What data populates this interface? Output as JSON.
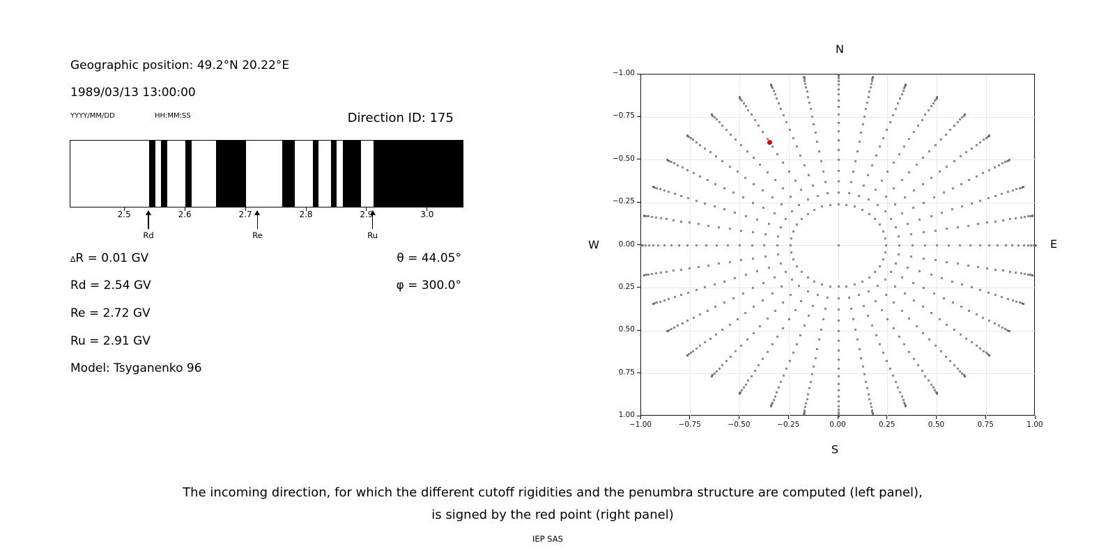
{
  "left_panel": {
    "geo": "Geographic position: 49.2°N 20.22°E",
    "datetime": "1989/03/13 13:00:00",
    "date_format": "YYYY/MM/DD",
    "time_format": "HH:MM:SS",
    "direction_id": "Direction ID: 175",
    "values": {
      "dr_prefix": "∆",
      "dr_rest": "R = 0.01 GV",
      "rd": "Rd = 2.54 GV",
      "re": "Re = 2.72 GV",
      "ru": "Ru = 2.91 GV",
      "model": "Model: Tsyganenko 96"
    },
    "angles": {
      "theta": "θ = 44.05°",
      "phi": "φ = 300.0°"
    }
  },
  "caption": {
    "line1": "The incoming direction, for which the different cutoff rigidities and the penumbra structure are computed (left panel),",
    "line2": "is signed by the red point (right panel)",
    "credit": "IEP SAS"
  },
  "chart_data": [
    {
      "type": "bar",
      "panel": "penumbra-structure",
      "xlim": [
        2.41,
        3.06
      ],
      "tick_values": [
        2.5,
        2.6,
        2.7,
        2.8,
        2.9,
        3.0
      ],
      "tick_labels": [
        "2.5",
        "2.6",
        "2.7",
        "2.8",
        "2.9",
        "3.0"
      ],
      "x_unit": "GV",
      "forbidden_color": "#000000",
      "allowed_color": "#ffffff",
      "forbidden_bands_gv": [
        [
          2.54,
          2.55
        ],
        [
          2.56,
          2.57
        ],
        [
          2.6,
          2.61
        ],
        [
          2.65,
          2.7
        ],
        [
          2.76,
          2.78
        ],
        [
          2.81,
          2.82
        ],
        [
          2.84,
          2.85
        ],
        [
          2.86,
          2.89
        ],
        [
          2.91,
          3.06
        ]
      ],
      "markers": [
        {
          "label": "Rd",
          "value_gv": 2.54
        },
        {
          "label": "Re",
          "value_gv": 2.72
        },
        {
          "label": "Ru",
          "value_gv": 2.91
        }
      ]
    },
    {
      "type": "scatter",
      "panel": "incoming-direction-map",
      "xlim": [
        -1,
        1
      ],
      "ylim": [
        -1,
        1
      ],
      "tick_values": [
        -1,
        -0.75,
        -0.5,
        -0.25,
        0,
        0.25,
        0.5,
        0.75,
        1
      ],
      "x_tick_labels": [
        "−1.00",
        "−0.75",
        "−0.50",
        "−0.25",
        "0.00",
        "0.25",
        "0.50",
        "0.75",
        "1.00"
      ],
      "y_tick_labels": [
        "1.00",
        "0.75",
        "0.50",
        "0.25",
        "0.00",
        "−0.25",
        "−0.50",
        "−0.75",
        "−1.00"
      ],
      "grid_tick_values": [
        -0.75,
        -0.5,
        -0.25,
        0,
        0.25,
        0.5,
        0.75
      ],
      "grid_on": true,
      "grid_color": "#e7e7e7",
      "compass": {
        "top": "N",
        "bottom": "S",
        "left": "W",
        "right": "E"
      },
      "dot_color": "#5f5f5f",
      "azimuth_step_deg": 10,
      "zenith_angles_deg": [
        14,
        18,
        22,
        26,
        30,
        34,
        38,
        42,
        46,
        50,
        54,
        58,
        62,
        66,
        70,
        74,
        78,
        82,
        86,
        90
      ],
      "spoke_radii": [
        0.242,
        0.309,
        0.375,
        0.438,
        0.5,
        0.559,
        0.616,
        0.669,
        0.719,
        0.766,
        0.809,
        0.848,
        0.883,
        0.914,
        0.94,
        0.961,
        0.978,
        0.99,
        0.998,
        1.0
      ],
      "has_center_point": true,
      "red_point": {
        "x": -0.348,
        "y": 0.602,
        "plot_angle_deg": 120,
        "radius": 0.695,
        "color": "#e00000"
      }
    }
  ]
}
